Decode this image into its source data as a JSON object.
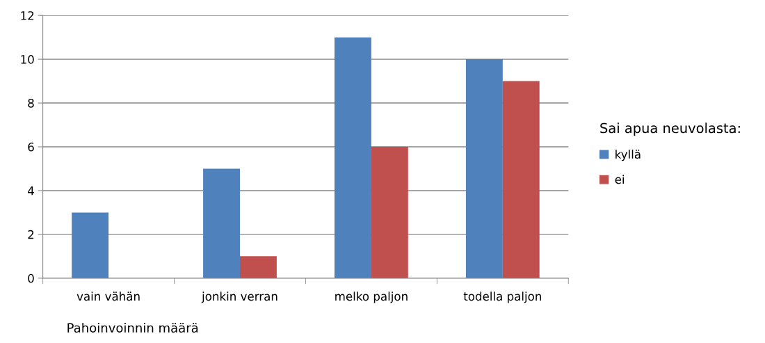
{
  "chart_data": {
    "type": "bar",
    "xlabel": "Pahoinvoinnin määrä",
    "legend_title": "Sai apua neuvolasta:",
    "categories": [
      "vain vähän",
      "jonkin verran",
      "melko paljon",
      "todella paljon"
    ],
    "series": [
      {
        "name": "kyllä",
        "color": "#4f81bd",
        "values": [
          3,
          5,
          11,
          10
        ]
      },
      {
        "name": "ei",
        "color": "#c0504d",
        "values": [
          0,
          1,
          6,
          9
        ]
      }
    ],
    "ylim": [
      0,
      12
    ],
    "yticks": [
      0,
      2,
      4,
      6,
      8,
      10,
      12
    ],
    "grid": "y",
    "legend": "right"
  }
}
